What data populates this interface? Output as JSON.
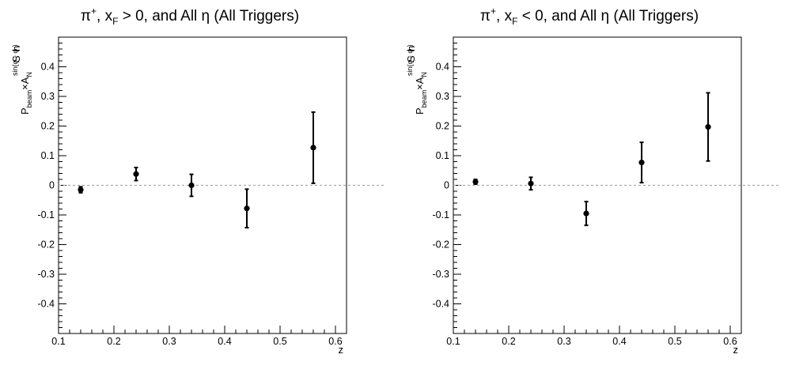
{
  "chart_data": [
    {
      "type": "scatter",
      "title": {
        "main": "π",
        "sup": "+",
        "mid": ", x",
        "sub": "F",
        "rest": " > 0, and All η (All Triggers)"
      },
      "xlabel": "z",
      "ylabel": {
        "p": "P",
        "beam": "beam",
        "x": "×A",
        "n": "N",
        "sup": "sin(φ  - φ )",
        "s": "S",
        "h": "h"
      },
      "xlim": [
        0.1,
        0.62
      ],
      "ylim": [
        -0.5,
        0.5
      ],
      "x_ticks": [
        "0.1",
        "0.2",
        "0.3",
        "0.4",
        "0.5",
        "0.6"
      ],
      "y_ticks": [
        "-0.4",
        "-0.3",
        "-0.2",
        "-0.1",
        "0",
        "0.1",
        "0.2",
        "0.3",
        "0.4"
      ],
      "reference_line_y": 0,
      "points": [
        {
          "x": 0.14,
          "y": -0.015,
          "err": 0.01
        },
        {
          "x": 0.24,
          "y": 0.038,
          "err": 0.022
        },
        {
          "x": 0.34,
          "y": 0.0,
          "err": 0.037
        },
        {
          "x": 0.44,
          "y": -0.078,
          "err": 0.065
        },
        {
          "x": 0.56,
          "y": 0.127,
          "err": 0.12
        }
      ]
    },
    {
      "type": "scatter",
      "title": {
        "main": "π",
        "sup": "+",
        "mid": ", x",
        "sub": "F",
        "rest": " < 0, and All η (All Triggers)"
      },
      "xlabel": "z",
      "ylabel": {
        "p": "P",
        "beam": "beam",
        "x": "×A",
        "n": "N",
        "sup": "sin(φ  - φ )",
        "s": "S",
        "h": "h"
      },
      "xlim": [
        0.1,
        0.62
      ],
      "ylim": [
        -0.5,
        0.5
      ],
      "x_ticks": [
        "0.1",
        "0.2",
        "0.3",
        "0.4",
        "0.5",
        "0.6"
      ],
      "y_ticks": [
        "-0.4",
        "-0.3",
        "-0.2",
        "-0.1",
        "0",
        "0.1",
        "0.2",
        "0.3",
        "0.4"
      ],
      "reference_line_y": 0,
      "points": [
        {
          "x": 0.14,
          "y": 0.012,
          "err": 0.008
        },
        {
          "x": 0.24,
          "y": 0.006,
          "err": 0.021
        },
        {
          "x": 0.34,
          "y": -0.095,
          "err": 0.04
        },
        {
          "x": 0.44,
          "y": 0.077,
          "err": 0.068
        },
        {
          "x": 0.56,
          "y": 0.197,
          "err": 0.115
        }
      ]
    }
  ]
}
